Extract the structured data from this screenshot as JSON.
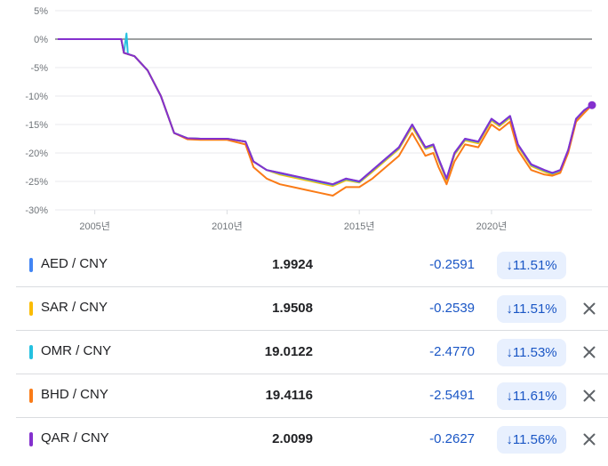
{
  "chart_data": {
    "type": "line",
    "ylim": [
      -30,
      5
    ],
    "y_ticks": [
      "5%",
      "0%",
      "-5%",
      "-10%",
      "-15%",
      "-20%",
      "-25%",
      "-30%"
    ],
    "x_ticks": [
      "2005년",
      "2010년",
      "2015년",
      "2020년"
    ],
    "xlim": [
      2003.5,
      2023.8
    ],
    "grid": "horizontal",
    "series": [
      {
        "name": "AED / CNY",
        "color": "#4285f4",
        "x": [
          2003.6,
          2006.0,
          2006.1,
          2006.5,
          2007.0,
          2007.5,
          2008.0,
          2008.5,
          2009.0,
          2010.0,
          2010.7,
          2011.0,
          2011.5,
          2012.0,
          2012.5,
          2013.0,
          2013.5,
          2014.0,
          2014.5,
          2015.0,
          2015.5,
          2016.0,
          2016.5,
          2017.0,
          2017.5,
          2017.8,
          2018.0,
          2018.3,
          2018.6,
          2019.0,
          2019.5,
          2020.0,
          2020.3,
          2020.7,
          2021.0,
          2021.5,
          2022.0,
          2022.3,
          2022.6,
          2022.9,
          2023.2,
          2023.5,
          2023.8
        ],
        "y": [
          0,
          0,
          -2.4,
          -3.0,
          -5.5,
          -10.0,
          -16.5,
          -17.4,
          -17.5,
          -17.5,
          -18.0,
          -21.5,
          -23.0,
          -23.5,
          -24.0,
          -24.5,
          -25.0,
          -25.5,
          -24.5,
          -25.0,
          -23.0,
          -21.0,
          -19.0,
          -15.0,
          -19.0,
          -18.5,
          -21.0,
          -24.5,
          -20.0,
          -17.5,
          -18.0,
          -14.0,
          -15.0,
          -13.5,
          -18.5,
          -22.0,
          -23.0,
          -23.5,
          -23.0,
          -19.5,
          -14.0,
          -12.5,
          -11.5
        ]
      },
      {
        "name": "SAR / CNY",
        "color": "#fbbc04",
        "x": [
          2003.6,
          2006.0,
          2006.1,
          2006.5,
          2007.0,
          2007.5,
          2008.0,
          2008.5,
          2009.0,
          2010.0,
          2010.7,
          2011.0,
          2011.5,
          2012.0,
          2012.5,
          2013.0,
          2013.5,
          2014.0,
          2014.5,
          2015.0,
          2015.5,
          2016.0,
          2016.5,
          2017.0,
          2017.5,
          2017.8,
          2018.0,
          2018.3,
          2018.6,
          2019.0,
          2019.5,
          2020.0,
          2020.3,
          2020.7,
          2021.0,
          2021.5,
          2022.0,
          2022.3,
          2022.6,
          2022.9,
          2023.2,
          2023.5,
          2023.8
        ],
        "y": [
          0,
          0,
          -2.4,
          -3.0,
          -5.5,
          -10.0,
          -16.5,
          -17.4,
          -17.5,
          -17.5,
          -18.0,
          -21.5,
          -23.0,
          -23.8,
          -24.3,
          -24.8,
          -25.3,
          -25.8,
          -24.8,
          -25.2,
          -23.3,
          -21.3,
          -19.3,
          -15.4,
          -19.3,
          -18.8,
          -21.3,
          -24.8,
          -20.3,
          -17.8,
          -18.3,
          -14.3,
          -15.3,
          -13.8,
          -18.8,
          -22.3,
          -23.3,
          -23.8,
          -23.3,
          -19.8,
          -14.3,
          -12.8,
          -11.5
        ]
      },
      {
        "name": "OMR / CNY",
        "color": "#24c1e0",
        "x": [
          2003.6,
          2006.0,
          2006.1,
          2006.2,
          2006.25,
          2006.5,
          2007.0,
          2007.5,
          2008.0,
          2008.5,
          2009.0,
          2010.0,
          2010.7,
          2011.0,
          2011.5,
          2012.0,
          2012.5,
          2013.0,
          2013.5,
          2014.0,
          2014.5,
          2015.0,
          2015.5,
          2016.0,
          2016.5,
          2017.0,
          2017.5,
          2017.8,
          2018.0,
          2018.3,
          2018.6,
          2019.0,
          2019.5,
          2020.0,
          2020.3,
          2020.7,
          2021.0,
          2021.5,
          2022.0,
          2022.3,
          2022.6,
          2022.9,
          2023.2,
          2023.5,
          2023.8
        ],
        "y": [
          0,
          0,
          -2.4,
          1.0,
          -2.6,
          -3.0,
          -5.5,
          -10.0,
          -16.5,
          -17.4,
          -17.5,
          -17.5,
          -18.0,
          -21.5,
          -23.0,
          -23.6,
          -24.1,
          -24.6,
          -25.1,
          -25.6,
          -24.6,
          -25.1,
          -23.1,
          -21.1,
          -19.1,
          -15.1,
          -19.1,
          -18.6,
          -21.1,
          -24.6,
          -20.1,
          -17.6,
          -18.1,
          -14.1,
          -15.1,
          -13.6,
          -18.6,
          -22.1,
          -23.1,
          -23.6,
          -23.1,
          -19.6,
          -14.1,
          -12.6,
          -11.5
        ]
      },
      {
        "name": "BHD / CNY",
        "color": "#fa7b17",
        "x": [
          2003.6,
          2006.0,
          2006.1,
          2006.5,
          2007.0,
          2007.5,
          2008.0,
          2008.5,
          2009.0,
          2010.0,
          2010.7,
          2011.0,
          2011.5,
          2012.0,
          2012.5,
          2013.0,
          2013.5,
          2014.0,
          2014.5,
          2015.0,
          2015.5,
          2016.0,
          2016.5,
          2017.0,
          2017.5,
          2017.8,
          2018.0,
          2018.3,
          2018.6,
          2019.0,
          2019.5,
          2020.0,
          2020.3,
          2020.7,
          2021.0,
          2021.5,
          2022.0,
          2022.3,
          2022.6,
          2022.9,
          2023.2,
          2023.5,
          2023.8
        ],
        "y": [
          0,
          0,
          -2.4,
          -3.0,
          -5.5,
          -10.0,
          -16.5,
          -17.6,
          -17.7,
          -17.7,
          -18.5,
          -22.5,
          -24.5,
          -25.5,
          -26.0,
          -26.5,
          -27.0,
          -27.5,
          -26.0,
          -26.0,
          -24.5,
          -22.5,
          -20.5,
          -16.5,
          -20.5,
          -20.0,
          -22.5,
          -25.5,
          -21.5,
          -18.5,
          -19.0,
          -15.0,
          -16.0,
          -14.5,
          -19.5,
          -23.0,
          -23.8,
          -24.0,
          -23.5,
          -20.0,
          -14.5,
          -13.0,
          -11.6
        ]
      },
      {
        "name": "QAR / CNY",
        "color": "#8430ce",
        "x": [
          2003.6,
          2006.0,
          2006.1,
          2006.5,
          2007.0,
          2007.5,
          2008.0,
          2008.5,
          2009.0,
          2010.0,
          2010.7,
          2011.0,
          2011.5,
          2012.0,
          2012.5,
          2013.0,
          2013.5,
          2014.0,
          2014.5,
          2015.0,
          2015.5,
          2016.0,
          2016.5,
          2017.0,
          2017.5,
          2017.8,
          2018.0,
          2018.3,
          2018.6,
          2019.0,
          2019.5,
          2020.0,
          2020.3,
          2020.7,
          2021.0,
          2021.5,
          2022.0,
          2022.3,
          2022.6,
          2022.9,
          2023.2,
          2023.5,
          2023.8
        ],
        "y": [
          0,
          0,
          -2.4,
          -3.0,
          -5.5,
          -10.0,
          -16.5,
          -17.4,
          -17.5,
          -17.5,
          -18.0,
          -21.5,
          -23.0,
          -23.5,
          -24.0,
          -24.5,
          -25.0,
          -25.5,
          -24.5,
          -25.0,
          -23.0,
          -21.0,
          -19.0,
          -15.0,
          -19.0,
          -18.5,
          -21.0,
          -24.5,
          -20.0,
          -17.5,
          -18.0,
          -14.0,
          -15.0,
          -13.5,
          -18.5,
          -22.0,
          -23.0,
          -23.5,
          -23.0,
          -19.5,
          -14.0,
          -12.5,
          -11.6
        ]
      }
    ]
  },
  "comparison": {
    "rows": [
      {
        "pair": "AED / CNY",
        "color": "#4285f4",
        "price": "1.9924",
        "change": "-0.2591",
        "percent": "11.51%",
        "removable": false
      },
      {
        "pair": "SAR / CNY",
        "color": "#fbbc04",
        "price": "1.9508",
        "change": "-0.2539",
        "percent": "11.51%",
        "removable": true
      },
      {
        "pair": "OMR / CNY",
        "color": "#24c1e0",
        "price": "19.0122",
        "change": "-2.4770",
        "percent": "11.53%",
        "removable": true
      },
      {
        "pair": "BHD / CNY",
        "color": "#fa7b17",
        "price": "19.4116",
        "change": "-2.5491",
        "percent": "11.61%",
        "removable": true
      },
      {
        "pair": "QAR / CNY",
        "color": "#8430ce",
        "price": "2.0099",
        "change": "-0.2627",
        "percent": "11.56%",
        "removable": true
      }
    ],
    "down_arrow": "↓"
  }
}
